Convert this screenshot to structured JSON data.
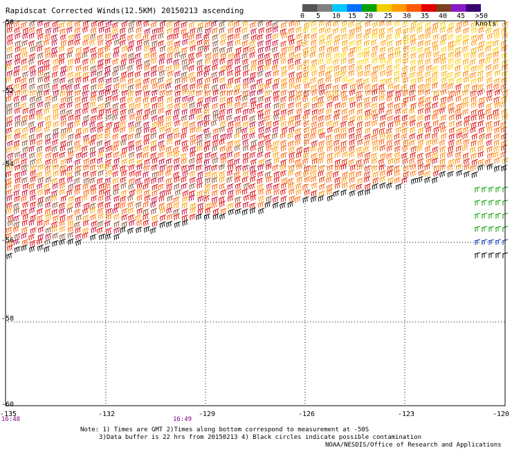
{
  "title": "Rapidscat Corrected Winds(12.5KM) 20150213 ascending",
  "legend": {
    "labels": [
      "0",
      "5",
      "10",
      "15",
      "20",
      "25",
      "30",
      "35",
      "40",
      "45",
      ">50 knots"
    ],
    "colors": [
      "#555555",
      "#7f7f7f",
      "#00c8ff",
      "#0070ff",
      "#00a000",
      "#f0d000",
      "#ff9a00",
      "#ff5a00",
      "#e00000",
      "#7a4020",
      "#8a1ac8",
      "#3a0070"
    ]
  },
  "axes": {
    "lat_labels": [
      "-50",
      "-52",
      "-54",
      "-56",
      "-58",
      "-60"
    ],
    "lon_labels": [
      "-135",
      "-132",
      "-129",
      "-126",
      "-123",
      "-120"
    ]
  },
  "times": [
    "16:48",
    "16:49"
  ],
  "notes": {
    "line1": "Note: 1) Times are GMT 2)Times along bottom correspond to measurement at -50S",
    "line2": "3)Data buffer is 22 hrs from 20150213 4) Black circles indicate possible contamination"
  },
  "credit": "NOAA/NESDIS/Office of Research and Applications"
}
